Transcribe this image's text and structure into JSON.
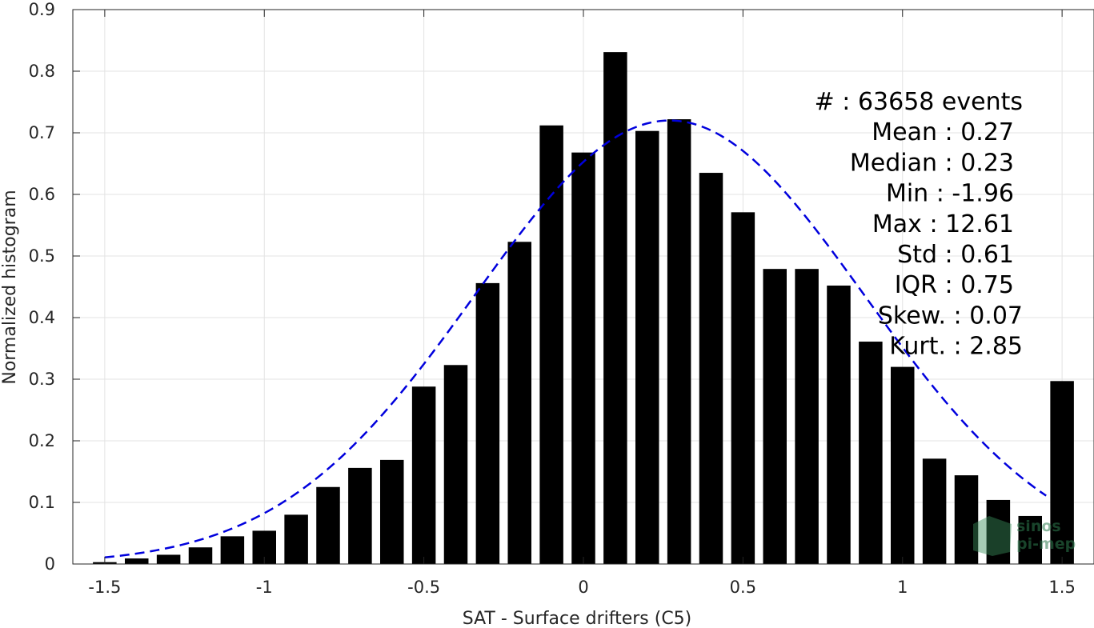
{
  "chart_data": {
    "type": "bar",
    "xlabel": "SAT - Surface drifters (C5)",
    "ylabel": "Normalized histogram",
    "xlim": [
      -1.6,
      1.6
    ],
    "ylim": [
      0,
      0.9
    ],
    "xticks": [
      -1.5,
      -1,
      -0.5,
      0,
      0.5,
      1,
      1.5
    ],
    "xtick_labels": [
      "-1.5",
      "-1",
      "-0.5",
      "0",
      "0.5",
      "1",
      "1.5"
    ],
    "yticks": [
      0,
      0.1,
      0.2,
      0.3,
      0.4,
      0.5,
      0.6,
      0.7,
      0.8,
      0.9
    ],
    "ytick_labels": [
      "0",
      "0.1",
      "0.2",
      "0.3",
      "0.4",
      "0.5",
      "0.6",
      "0.7",
      "0.8",
      "0.9"
    ],
    "grid": true,
    "bar_color": "#000000",
    "bin_centers": [
      -1.5,
      -1.4,
      -1.3,
      -1.2,
      -1.1,
      -1.0,
      -0.9,
      -0.8,
      -0.7,
      -0.6,
      -0.5,
      -0.4,
      -0.3,
      -0.2,
      -0.1,
      0.0,
      0.1,
      0.2,
      0.3,
      0.4,
      0.5,
      0.6,
      0.7,
      0.8,
      0.9,
      1.0,
      1.1,
      1.2,
      1.3,
      1.4,
      1.5
    ],
    "values": [
      0.003,
      0.009,
      0.015,
      0.027,
      0.045,
      0.054,
      0.08,
      0.125,
      0.156,
      0.169,
      0.288,
      0.323,
      0.456,
      0.523,
      0.712,
      0.668,
      0.831,
      0.703,
      0.722,
      0.635,
      0.571,
      0.479,
      0.479,
      0.452,
      0.361,
      0.32,
      0.171,
      0.144,
      0.104,
      0.078,
      0.297
    ],
    "fit_curve": {
      "type": "gaussian",
      "mean": 0.27,
      "std": 0.61,
      "peak": 0.72,
      "x_range": [
        -1.5,
        1.45
      ],
      "color": "#0000dd",
      "style": "dashed"
    },
    "annotations": [
      "#  : 63658 events",
      "Mean : 0.27",
      "Median : 0.23",
      "Min : -1.96",
      "Max : 12.61",
      "Std : 0.61",
      "IQR : 0.75",
      "Skew. : 0.07",
      "Kurt. : 2.85"
    ],
    "watermark": [
      "sinos",
      "pi-mep"
    ]
  }
}
